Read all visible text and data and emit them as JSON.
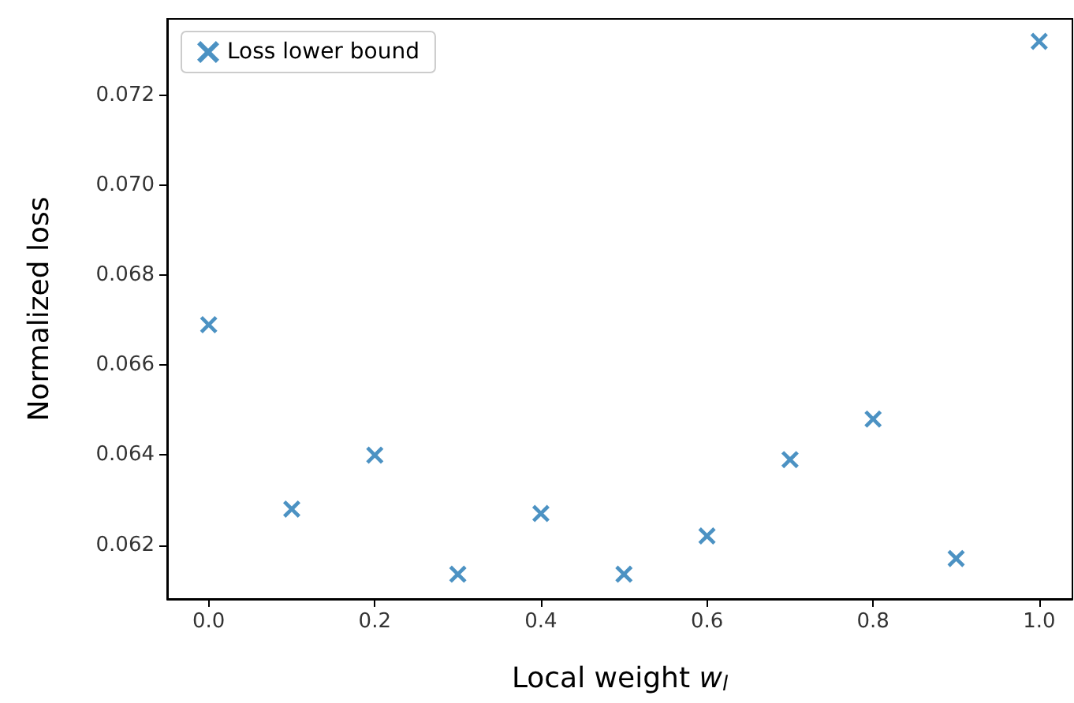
{
  "chart_data": {
    "type": "scatter",
    "xlabel": "Local weight w$_{l}$",
    "ylabel": "Normalized loss",
    "x": [
      0.0,
      0.1,
      0.2,
      0.3,
      0.4,
      0.5,
      0.6,
      0.7,
      0.8,
      0.9,
      1.0
    ],
    "series": [
      {
        "name": "Loss lower bound",
        "color": "#1f77b4",
        "values": [
          0.0669,
          0.0628,
          0.064,
          0.06135,
          0.0627,
          0.06135,
          0.0622,
          0.0639,
          0.0648,
          0.0617,
          0.0732
        ]
      }
    ],
    "xlim": [
      -0.05,
      1.04
    ],
    "xticks": [
      {
        "value": 0,
        "label": "0.0"
      },
      0.2,
      0.4,
      0.6,
      0.8,
      {
        "value": 1,
        "label": "1.0"
      }
    ],
    "ylim": [
      0.0608,
      0.0737
    ],
    "yticks": [
      0.062,
      0.064,
      0.066,
      0.068,
      {
        "value": 0.07,
        "label": "0.070"
      },
      0.072
    ],
    "grid": false,
    "legend": "top left",
    "marker": "cross"
  }
}
